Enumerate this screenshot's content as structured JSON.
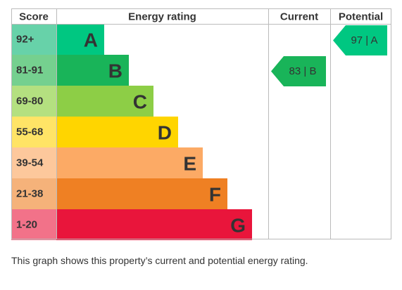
{
  "chart_data": {
    "type": "bar",
    "headers": {
      "score": "Score",
      "rating": "Energy rating",
      "current": "Current",
      "potential": "Potential"
    },
    "bands": [
      {
        "letter": "A",
        "range": "92+",
        "color": "#00c781",
        "score_color": "#67d2a9"
      },
      {
        "letter": "B",
        "range": "81-91",
        "color": "#19b459",
        "score_color": "#75d08f"
      },
      {
        "letter": "C",
        "range": "69-80",
        "color": "#8dce46",
        "score_color": "#b4e080"
      },
      {
        "letter": "D",
        "range": "55-68",
        "color": "#ffd500",
        "score_color": "#ffe466"
      },
      {
        "letter": "E",
        "range": "39-54",
        "color": "#fcaa65",
        "score_color": "#fdc89c"
      },
      {
        "letter": "F",
        "range": "21-38",
        "color": "#ef8023",
        "score_color": "#f5b27a"
      },
      {
        "letter": "G",
        "range": "1-20",
        "color": "#e9153b",
        "score_color": "#f27289"
      }
    ],
    "current": {
      "value": 83,
      "letter": "B",
      "label": "83 | B",
      "color": "#19b459"
    },
    "potential": {
      "value": 97,
      "letter": "A",
      "label": "97 | A",
      "color": "#00c781"
    }
  },
  "caption": "This graph shows this property’s current and potential energy rating."
}
